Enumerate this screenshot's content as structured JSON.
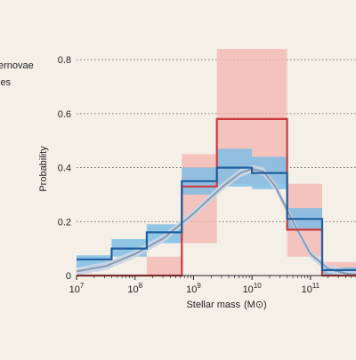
{
  "chart_data": {
    "type": "histogram",
    "xlabel": "Stellar mass",
    "xlabel_unit": "(M⊙)",
    "ylabel": "Probability",
    "x_scale": "log10",
    "xlim": [
      10000000.0,
      600000000000.0
    ],
    "ylim": [
      0,
      0.84
    ],
    "grid": "horizontal dotted",
    "y_ticks": [
      {
        "value": 0,
        "label": "0"
      },
      {
        "value": 0.2,
        "label": "0.2"
      },
      {
        "value": 0.4,
        "label": "0.4"
      },
      {
        "value": 0.6,
        "label": "0.6"
      },
      {
        "value": 0.8,
        "label": "0.8"
      }
    ],
    "x_ticks": [
      {
        "exp": 7,
        "base": "10",
        "sup": "7"
      },
      {
        "exp": 8,
        "base": "10",
        "sup": "8"
      },
      {
        "exp": 9,
        "base": "10",
        "sup": "9"
      },
      {
        "exp": 10,
        "base": "10",
        "sup": "10"
      },
      {
        "exp": 11,
        "base": "10",
        "sup": "11"
      }
    ],
    "bin_edges_log10": [
      7.0,
      7.6,
      8.2,
      8.8,
      9.4,
      10.0,
      10.6,
      11.2,
      11.8
    ],
    "legend": [
      {
        "label": "ernovae",
        "color": "#cc3a3a"
      },
      {
        "label": "ies",
        "color": "#1f5e9e"
      }
    ],
    "series": [
      {
        "key": "red",
        "color": "#cc3a3a",
        "band_color": "#f4b4b0",
        "values": [
          0.0,
          0.0,
          0.0,
          0.33,
          0.58,
          0.58,
          0.17,
          0.0
        ],
        "err_low": [
          0.0,
          0.0,
          0.0,
          0.12,
          0.34,
          0.34,
          0.07,
          0.0
        ],
        "err_high": [
          0.0,
          0.0,
          0.07,
          0.45,
          0.84,
          0.84,
          0.34,
          0.05
        ]
      },
      {
        "key": "blue",
        "color": "#1f5e9e",
        "band_color": "#7fbde4",
        "values": [
          0.06,
          0.1,
          0.16,
          0.35,
          0.4,
          0.38,
          0.21,
          0.02
        ],
        "err_low": [
          0.03,
          0.07,
          0.12,
          0.3,
          0.33,
          0.32,
          0.17,
          0.0
        ],
        "err_high": [
          0.075,
          0.135,
          0.19,
          0.4,
          0.47,
          0.44,
          0.25,
          0.03
        ]
      }
    ],
    "curve": {
      "color": "#8a9ab0",
      "band_color": "#c8d6e6",
      "x_log10": [
        7.0,
        7.5,
        8.0,
        8.5,
        9.0,
        9.5,
        9.8,
        10.0,
        10.2,
        10.4,
        10.7,
        11.0,
        11.3,
        11.6,
        11.8
      ],
      "y": [
        0.015,
        0.035,
        0.08,
        0.14,
        0.23,
        0.33,
        0.38,
        0.395,
        0.385,
        0.33,
        0.2,
        0.08,
        0.025,
        0.008,
        0.003
      ],
      "band_half_width": 0.015
    }
  }
}
